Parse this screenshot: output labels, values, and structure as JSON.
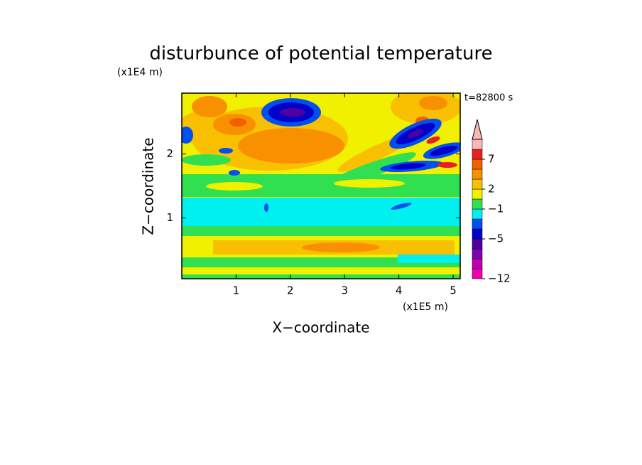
{
  "chart_data": {
    "type": "contour",
    "title": "disturbunce of potential temperature",
    "x_label": "X−coordinate",
    "y_label": "Z−coordinate",
    "x_unit": "(x1E5 m)",
    "y_unit": "(x1E4 m)",
    "annotation": "t=82800 s",
    "xlim": [
      0,
      5.13
    ],
    "ylim": [
      0.05,
      2.95
    ],
    "xticks": [
      1,
      2,
      3,
      4,
      5
    ],
    "yticks": [
      1,
      2
    ],
    "colorbar": {
      "levels": [
        -12,
        -10,
        -8,
        -6,
        -5,
        -4,
        -2,
        -1,
        1,
        2,
        4,
        5,
        7,
        9,
        11
      ],
      "colors": [
        "#f000b0",
        "#c000b0",
        "#8000b0",
        "#5000a0",
        "#0000c8",
        "#0050f0",
        "#00f0f0",
        "#30e050",
        "#f0f000",
        "#f8c000",
        "#f89000",
        "#f06000",
        "#e82020",
        "#f8b8b8"
      ],
      "ticks": [
        {
          "value": -12,
          "label": "−12"
        },
        {
          "value": -5,
          "label": "−5"
        },
        {
          "value": -1,
          "label": "−1"
        },
        2,
        7
      ]
    }
  }
}
